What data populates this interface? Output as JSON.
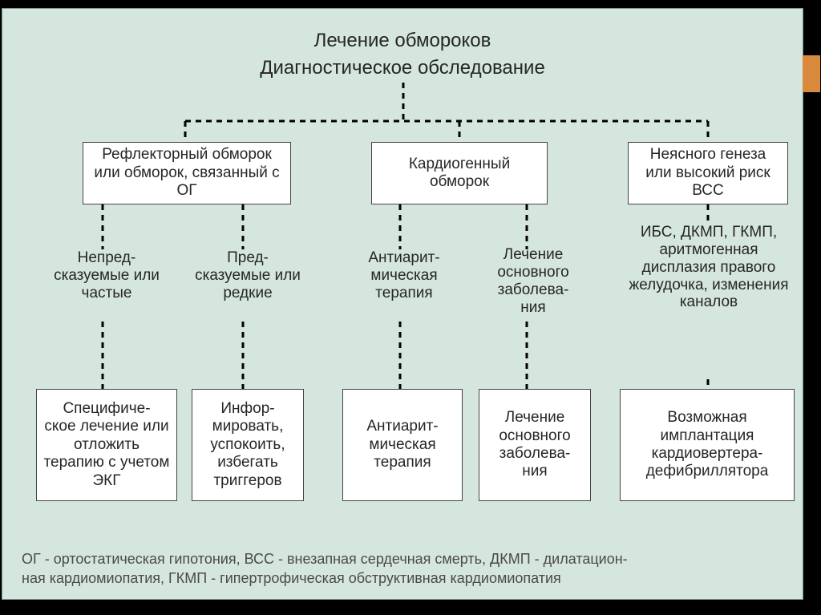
{
  "type": "flowchart",
  "background_color": "#d5e6de",
  "box_bg": "#ffffff",
  "box_border": "#444444",
  "text_color": "#262626",
  "legend_color": "#4a4a4a",
  "accent_color": "#d98a3d",
  "title_fontsize": 24,
  "node_fontsize": 19,
  "legend_fontsize": 18,
  "connector": {
    "stroke": "#000000",
    "width": 3,
    "dash": "7 6"
  },
  "title": "Лечение обмороков",
  "subtitle": "Диагностическое обследование",
  "row1": {
    "a": "Рефлекторный обморок или обморок, связанный с ОГ",
    "b": "Кардиогенный обморок",
    "c": "Неясного генеза или высокий риск ВСС"
  },
  "row2": {
    "a": "Непред-\nсказуемые или частые",
    "b": "Пред-\nсказуемые или редкие",
    "c": "Антиарит-\nмическая терапия",
    "d": "Лечение основного заболева-\nния",
    "e": "ИБС, ДКМП, ГКМП, аритмогенная дисплазия правого желудочка, изменения каналов"
  },
  "row3": {
    "a": "Специфиче-\nское лечение или отложить терапию с учетом ЭКГ",
    "b": "Инфор-\nмировать, успокоить, избегать триггеров",
    "c": "Антиарит-\nмическая терапия",
    "d": "Лечение основного заболева-\nния",
    "e": "Возможная имплантация кардиовертера-\nдефибриллятора"
  },
  "legend": "ОГ - ортостатическая гипотония,  ВСС - внезапная сердечная смерть,  ДКМП - дилатацион-\nная кардиомиопатия, ГКМП - гипертрофическая обструктивная кардиомиопатия"
}
